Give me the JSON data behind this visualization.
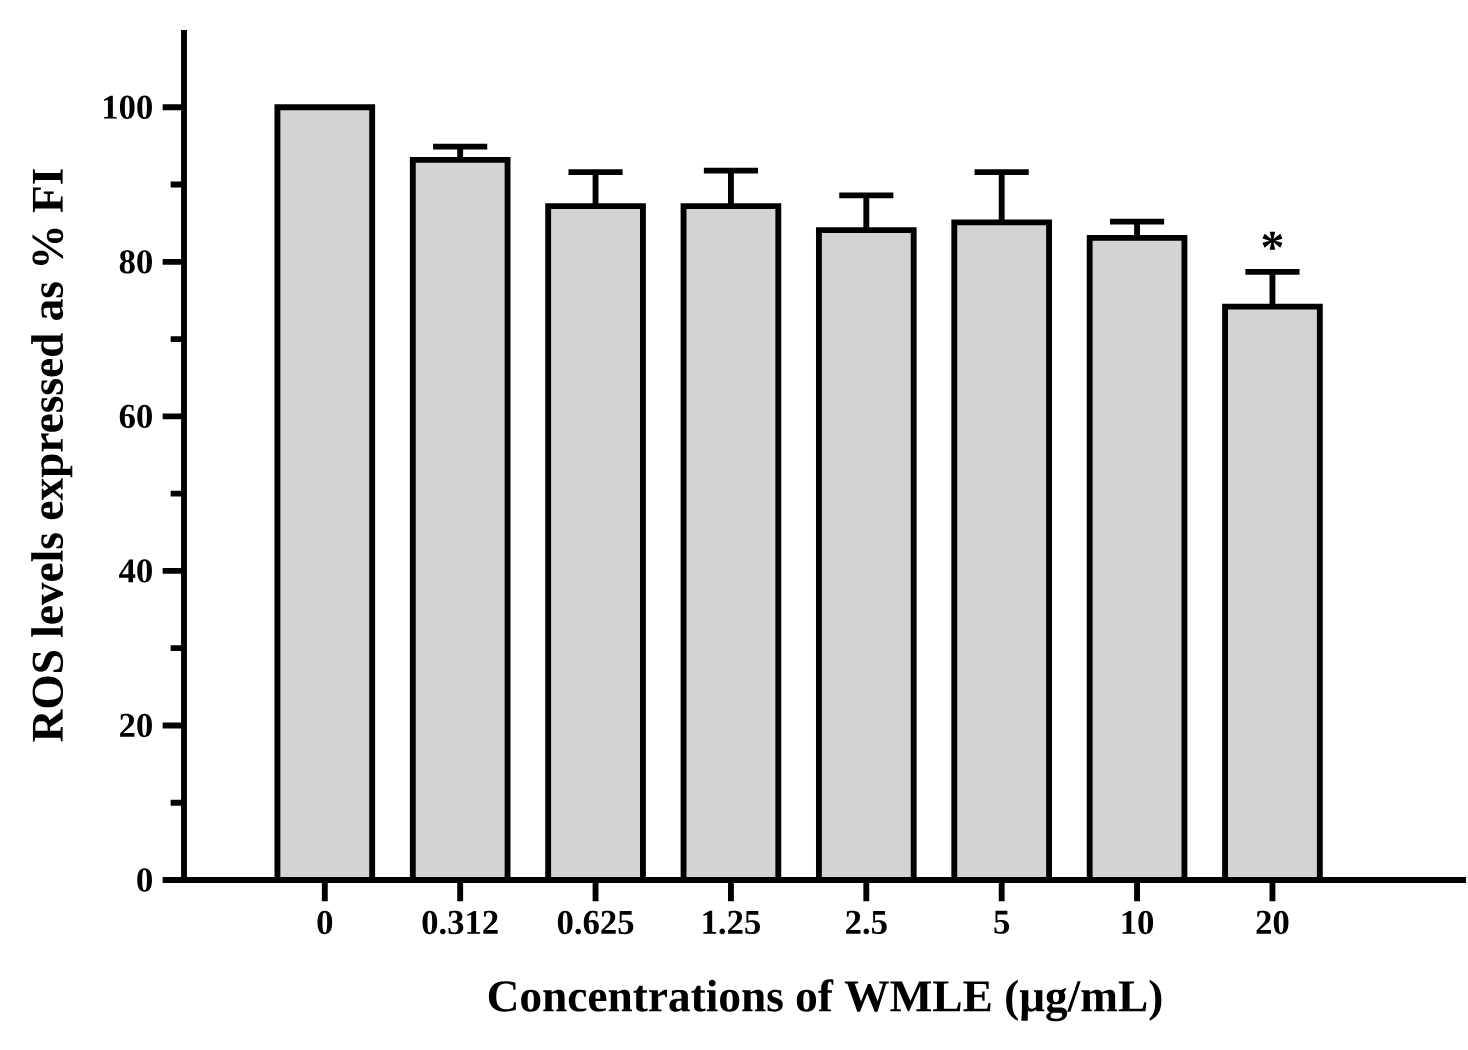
{
  "chart_data": {
    "type": "bar",
    "xlabel": "Concentrations of WMLE (μg/mL)",
    "ylabel": "ROS levels expressed as % FI",
    "categories": [
      "0",
      "0.312",
      "0.625",
      "1.25",
      "2.5",
      "5",
      "10",
      "20"
    ],
    "values": [
      100,
      93.2,
      87.2,
      87.2,
      84.1,
      85.1,
      83.1,
      74.2
    ],
    "errors": [
      null,
      [
        93.2,
        94.9
      ],
      [
        87.2,
        91.6
      ],
      [
        87.2,
        91.8
      ],
      [
        84.1,
        88.6
      ],
      [
        85.1,
        91.6
      ],
      [
        83.1,
        85.2
      ],
      [
        74.2,
        78.7
      ]
    ],
    "color": "#d3d3d3",
    "ylim": [
      0,
      110
    ],
    "yticks": [
      0,
      20,
      40,
      60,
      80,
      100
    ],
    "annotations": [
      {
        "text": "*",
        "x": "20",
        "y": 78.7
      }
    ]
  }
}
